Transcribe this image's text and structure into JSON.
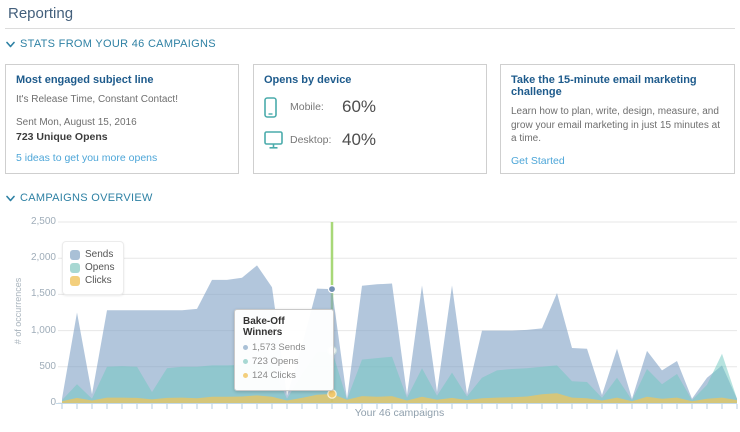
{
  "header": {
    "title": "Reporting"
  },
  "stats_section": {
    "header": "STATS FROM YOUR 46 CAMPAIGNS",
    "cards": {
      "engaged": {
        "title": "Most engaged subject line",
        "subject": "It's Release Time, Constant Contact!",
        "sent": "Sent Mon, August 15, 2016",
        "unique_opens": "723 Unique Opens",
        "link": "5 ideas to get you more opens"
      },
      "device": {
        "title": "Opens by device",
        "mobile_label": "Mobile:",
        "mobile_value": "60%",
        "desktop_label": "Desktop:",
        "desktop_value": "40%"
      },
      "challenge": {
        "title": "Take the 15-minute email marketing challenge",
        "body": "Learn how to plan, write, design, measure, and grow your email marketing in just 15 minutes at a time.",
        "link": "Get Started"
      }
    }
  },
  "campaigns_section": {
    "header": "CAMPAIGNS OVERVIEW"
  },
  "colors": {
    "accent_teal": "#2e81a4",
    "link_blue": "#4da6d8",
    "device_icon": "#4aabab",
    "crosshair_green": "#a8d878",
    "axis_line": "#c3d9e8",
    "tick": "#b5cedf",
    "gridline": "#e7e7e7"
  },
  "chart_data": {
    "type": "area",
    "title": "",
    "xlabel": "Your 46 campaigns",
    "ylabel": "# of occurrences",
    "ylim": [
      0,
      2500
    ],
    "grid": true,
    "legend_position": "top-left",
    "y_ticks": [
      {
        "value": 0,
        "label": "0"
      },
      {
        "value": 500,
        "label": "500"
      },
      {
        "value": 1000,
        "label": "1,000"
      },
      {
        "value": 1500,
        "label": "1,500"
      },
      {
        "value": 2000,
        "label": "2,000"
      },
      {
        "value": 2500,
        "label": "2,500"
      }
    ],
    "series": [
      {
        "name": "Sends",
        "color": "#a9c0d6",
        "fill": "rgba(127,160,196,0.6)",
        "marker": {
          "fill": "#7491b4",
          "stroke": "#ffffff"
        },
        "values": [
          60,
          1250,
          120,
          1280,
          1280,
          1280,
          1280,
          1280,
          1280,
          1300,
          1700,
          1700,
          1730,
          1900,
          1600,
          100,
          800,
          1580,
          1573,
          60,
          1620,
          1640,
          1650,
          110,
          1625,
          150,
          1625,
          120,
          1000,
          1000,
          1000,
          1010,
          1030,
          1520,
          760,
          750,
          110,
          750,
          60,
          720,
          450,
          580,
          60,
          350,
          520,
          60
        ]
      },
      {
        "name": "Opens",
        "color": "#a8d8d3",
        "fill": "rgba(110,199,192,0.5)",
        "marker": {
          "fill": "#ffffff",
          "stroke": "#cfe4e1"
        },
        "values": [
          40,
          260,
          60,
          500,
          510,
          500,
          150,
          480,
          500,
          500,
          520,
          520,
          530,
          560,
          520,
          60,
          400,
          700,
          723,
          50,
          600,
          620,
          640,
          70,
          480,
          100,
          420,
          90,
          350,
          450,
          470,
          480,
          500,
          520,
          300,
          290,
          70,
          350,
          40,
          470,
          260,
          400,
          40,
          250,
          680,
          60
        ]
      },
      {
        "name": "Clicks",
        "color": "#f3cf7d",
        "fill": "rgba(242,198,87,0.7)",
        "marker": {
          "fill": "#f2c96e",
          "stroke": "#fcf3da"
        },
        "values": [
          25,
          70,
          35,
          75,
          75,
          70,
          50,
          70,
          75,
          65,
          85,
          85,
          90,
          105,
          85,
          35,
          70,
          115,
          124,
          45,
          95,
          85,
          95,
          35,
          85,
          45,
          70,
          40,
          65,
          75,
          80,
          90,
          120,
          135,
          75,
          65,
          35,
          75,
          25,
          85,
          60,
          75,
          25,
          60,
          75,
          40
        ]
      }
    ],
    "highlight": {
      "index": 18,
      "campaign": "Bake-Off Winners",
      "sends": "1,573 Sends",
      "opens": "723 Opens",
      "clicks": "124 Clicks"
    }
  }
}
